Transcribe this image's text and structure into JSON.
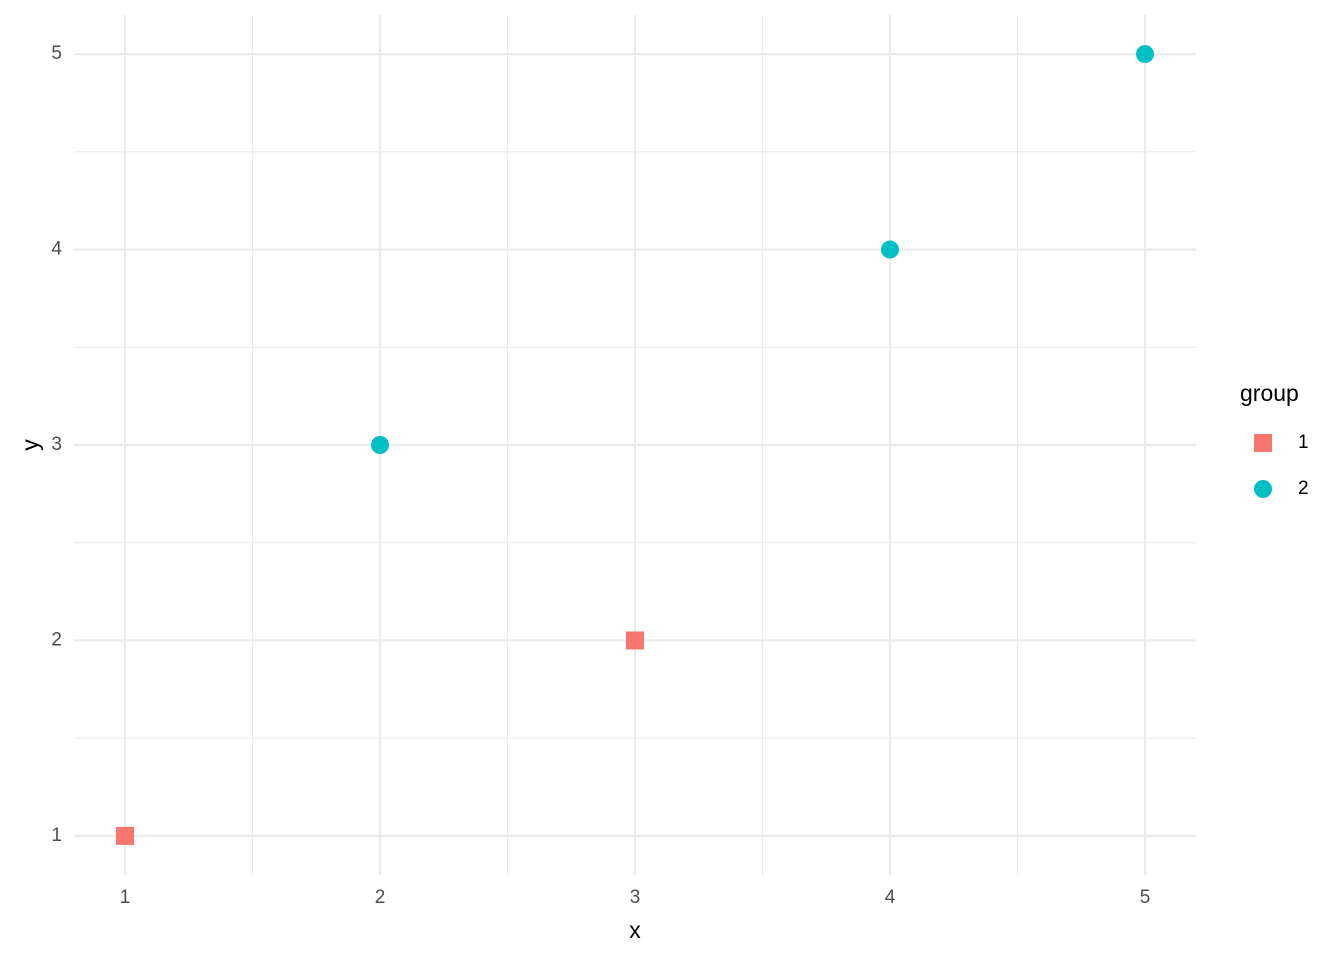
{
  "chart_data": {
    "type": "scatter",
    "x_label": "x",
    "y_label": "y",
    "legend_title": "group",
    "series": [
      {
        "name": "1",
        "color": "#F8766D",
        "marker": "square",
        "x": [
          1,
          3
        ],
        "values": [
          1,
          2
        ]
      },
      {
        "name": "2",
        "color": "#00BFC4",
        "marker": "circle",
        "x": [
          2,
          4,
          5
        ],
        "values": [
          3,
          4,
          5
        ]
      }
    ],
    "xlim": [
      0.8,
      5.2
    ],
    "ylim": [
      0.8,
      5.2
    ],
    "xticks": [
      1,
      2,
      3,
      4,
      5
    ],
    "yticks": [
      1,
      2,
      3,
      4,
      5
    ],
    "grid": true,
    "legend": "right"
  }
}
